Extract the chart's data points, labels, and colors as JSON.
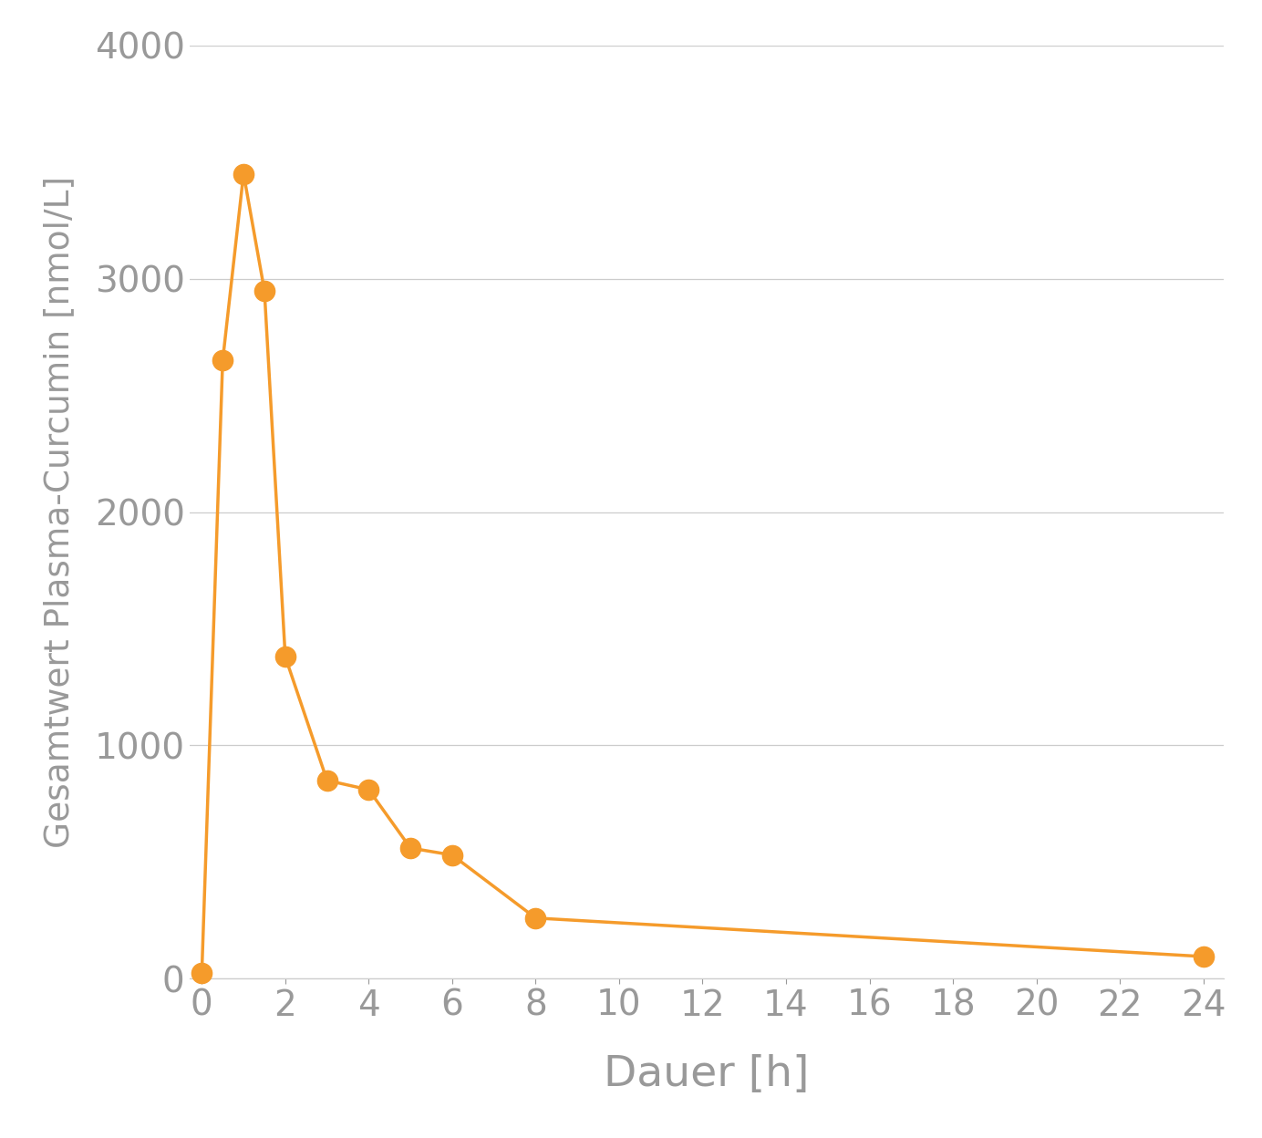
{
  "x": [
    0,
    0.5,
    1,
    1.5,
    2,
    3,
    4,
    5,
    6,
    8,
    24
  ],
  "y": [
    25,
    2650,
    3450,
    2950,
    1380,
    850,
    810,
    560,
    530,
    260,
    95
  ],
  "line_color": "#F59B2B",
  "marker_color": "#F59B2B",
  "marker_size": 16,
  "linewidth": 2.5,
  "xlabel": "Dauer [h]",
  "ylabel": "Gesamtwert Plasma-Curcumin [nmol/L]",
  "xlim": [
    -0.3,
    24.5
  ],
  "ylim": [
    0,
    4000
  ],
  "xticks": [
    0,
    2,
    4,
    6,
    8,
    10,
    12,
    14,
    16,
    18,
    20,
    22,
    24
  ],
  "yticks": [
    0,
    1000,
    2000,
    3000,
    4000
  ],
  "xlabel_fontsize": 34,
  "ylabel_fontsize": 27,
  "tick_fontsize": 28,
  "background_color": "#ffffff",
  "grid_color": "#cccccc",
  "label_color": "#999999"
}
